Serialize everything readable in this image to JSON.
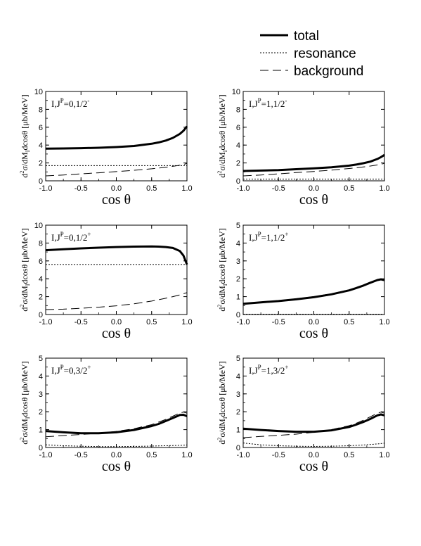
{
  "legend": {
    "entries": [
      {
        "name": "total",
        "style": "solid-thick"
      },
      {
        "name": "resonance",
        "style": "dotted"
      },
      {
        "name": "background",
        "style": "dashed"
      }
    ]
  },
  "chart_data": [
    {
      "type": "line",
      "panel_label": {
        "main": "I,J",
        "sup": "P",
        "rest": "=0,1/2",
        "sup2": "-"
      },
      "xlabel": "cos θ",
      "ylabel": "d²σ/dM_I dcosθ [μb/MeV]",
      "xlim": [
        -1,
        1
      ],
      "ylim": [
        0,
        10
      ],
      "xticks": [
        "-1.0",
        "-0.5",
        "0.0",
        "0.5",
        "1.0"
      ],
      "yticks": [
        "0",
        "2",
        "4",
        "6",
        "8",
        "10"
      ],
      "x": [
        -1.0,
        -0.75,
        -0.5,
        -0.25,
        0.0,
        0.25,
        0.5,
        0.6,
        0.7,
        0.8,
        0.9,
        0.95,
        1.0
      ],
      "series": [
        {
          "name": "total",
          "values": [
            3.6,
            3.62,
            3.65,
            3.7,
            3.78,
            3.9,
            4.15,
            4.3,
            4.5,
            4.8,
            5.25,
            5.6,
            6.1
          ]
        },
        {
          "name": "resonance",
          "values": [
            1.7,
            1.7,
            1.7,
            1.7,
            1.7,
            1.7,
            1.7,
            1.7,
            1.7,
            1.7,
            1.7,
            1.7,
            1.7
          ]
        },
        {
          "name": "background",
          "values": [
            0.55,
            0.65,
            0.78,
            0.9,
            1.03,
            1.18,
            1.35,
            1.43,
            1.52,
            1.62,
            1.75,
            1.82,
            1.95
          ]
        }
      ]
    },
    {
      "type": "line",
      "panel_label": {
        "main": "I,J",
        "sup": "P",
        "rest": "=1,1/2",
        "sup2": "-"
      },
      "xlabel": "cos θ",
      "ylabel": "d²σ/dM_I dcosθ [μb/MeV]",
      "xlim": [
        -1,
        1
      ],
      "ylim": [
        0,
        10
      ],
      "xticks": [
        "-1.0",
        "-0.5",
        "0.0",
        "0.5",
        "1.0"
      ],
      "yticks": [
        "0",
        "2",
        "4",
        "6",
        "8",
        "10"
      ],
      "x": [
        -1.0,
        -0.75,
        -0.5,
        -0.25,
        0.0,
        0.25,
        0.5,
        0.6,
        0.7,
        0.8,
        0.9,
        0.95,
        1.0
      ],
      "series": [
        {
          "name": "total",
          "values": [
            1.1,
            1.15,
            1.2,
            1.3,
            1.4,
            1.52,
            1.7,
            1.82,
            1.97,
            2.15,
            2.45,
            2.65,
            2.9
          ]
        },
        {
          "name": "resonance",
          "values": [
            0.2,
            0.2,
            0.2,
            0.2,
            0.2,
            0.2,
            0.2,
            0.2,
            0.2,
            0.2,
            0.2,
            0.2,
            0.2
          ]
        },
        {
          "name": "background",
          "values": [
            0.55,
            0.65,
            0.78,
            0.92,
            1.05,
            1.2,
            1.38,
            1.46,
            1.55,
            1.65,
            1.78,
            1.85,
            1.95
          ]
        }
      ]
    },
    {
      "type": "line",
      "panel_label": {
        "main": "I,J",
        "sup": "P",
        "rest": "=0,1/2",
        "sup2": "+"
      },
      "xlabel": "cos θ",
      "ylabel": "d²σ/dM_I dcosθ [μb/MeV]",
      "xlim": [
        -1,
        1
      ],
      "ylim": [
        0,
        10
      ],
      "xticks": [
        "-1.0",
        "-0.5",
        "0.0",
        "0.5",
        "1.0"
      ],
      "yticks": [
        "0",
        "2",
        "4",
        "6",
        "8",
        "10"
      ],
      "x": [
        -1.0,
        -0.75,
        -0.5,
        -0.25,
        0.0,
        0.25,
        0.5,
        0.6,
        0.7,
        0.8,
        0.9,
        0.95,
        1.0
      ],
      "series": [
        {
          "name": "total",
          "values": [
            7.2,
            7.3,
            7.4,
            7.48,
            7.55,
            7.6,
            7.62,
            7.6,
            7.55,
            7.45,
            7.1,
            6.6,
            5.6
          ]
        },
        {
          "name": "resonance",
          "values": [
            5.6,
            5.6,
            5.6,
            5.6,
            5.6,
            5.6,
            5.6,
            5.6,
            5.6,
            5.6,
            5.6,
            5.6,
            5.6
          ]
        },
        {
          "name": "background",
          "values": [
            0.55,
            0.6,
            0.7,
            0.82,
            0.98,
            1.2,
            1.5,
            1.65,
            1.82,
            2.0,
            2.2,
            2.32,
            2.45
          ]
        }
      ]
    },
    {
      "type": "line",
      "panel_label": {
        "main": "I,J",
        "sup": "P",
        "rest": "=1,1/2",
        "sup2": "+"
      },
      "xlabel": "cos θ",
      "ylabel": "d²σ/dM_I dcosθ [μb/MeV]",
      "xlim": [
        -1,
        1
      ],
      "ylim": [
        0,
        5
      ],
      "xticks": [
        "-1.0",
        "-0.5",
        "0.0",
        "0.5",
        "1.0"
      ],
      "yticks": [
        "0",
        "1",
        "2",
        "3",
        "4",
        "5"
      ],
      "x": [
        -1.0,
        -0.75,
        -0.5,
        -0.25,
        0.0,
        0.25,
        0.5,
        0.6,
        0.7,
        0.8,
        0.9,
        0.95,
        1.0
      ],
      "series": [
        {
          "name": "total",
          "values": [
            0.6,
            0.68,
            0.75,
            0.85,
            0.97,
            1.13,
            1.35,
            1.48,
            1.62,
            1.78,
            1.93,
            1.97,
            1.92
          ]
        },
        {
          "name": "resonance",
          "values": [
            0.02,
            0.02,
            0.02,
            0.02,
            0.02,
            0.02,
            0.02,
            0.02,
            0.02,
            0.02,
            0.02,
            0.02,
            0.02
          ]
        },
        {
          "name": "background",
          "values": [
            0.62,
            0.7,
            0.78,
            0.88,
            1.0,
            1.16,
            1.38,
            1.5,
            1.64,
            1.8,
            1.95,
            1.99,
            1.95
          ]
        }
      ]
    },
    {
      "type": "line",
      "panel_label": {
        "main": "I,J",
        "sup": "P",
        "rest": "=0,3/2",
        "sup2": "+"
      },
      "xlabel": "cos θ",
      "ylabel": "d²σ/dM_I dcosθ [μb/MeV]",
      "xlim": [
        -1,
        1
      ],
      "ylim": [
        0,
        5
      ],
      "xticks": [
        "-1.0",
        "-0.5",
        "0.0",
        "0.5",
        "1.0"
      ],
      "yticks": [
        "0",
        "1",
        "2",
        "3",
        "4",
        "5"
      ],
      "x": [
        -1.0,
        -0.75,
        -0.5,
        -0.25,
        0.0,
        0.25,
        0.5,
        0.6,
        0.7,
        0.8,
        0.9,
        0.95,
        1.0
      ],
      "series": [
        {
          "name": "total",
          "values": [
            0.92,
            0.85,
            0.8,
            0.8,
            0.85,
            0.98,
            1.2,
            1.32,
            1.48,
            1.65,
            1.82,
            1.83,
            1.75
          ]
        },
        {
          "name": "resonance",
          "values": [
            0.15,
            0.1,
            0.07,
            0.05,
            0.05,
            0.06,
            0.08,
            0.09,
            0.1,
            0.11,
            0.12,
            0.13,
            0.14
          ]
        },
        {
          "name": "background",
          "values": [
            0.6,
            0.67,
            0.73,
            0.8,
            0.9,
            1.05,
            1.28,
            1.42,
            1.57,
            1.75,
            1.93,
            1.98,
            1.92
          ]
        }
      ]
    },
    {
      "type": "line",
      "panel_label": {
        "main": "I,J",
        "sup": "P",
        "rest": "=1,3/2",
        "sup2": "+"
      },
      "xlabel": "cos θ",
      "ylabel": "d²σ/dM_I dcosθ [μb/MeV]",
      "xlim": [
        -1,
        1
      ],
      "ylim": [
        0,
        5
      ],
      "xticks": [
        "-1.0",
        "-0.5",
        "0.0",
        "0.5",
        "1.0"
      ],
      "yticks": [
        "0",
        "1",
        "2",
        "3",
        "4",
        "5"
      ],
      "x": [
        -1.0,
        -0.75,
        -0.5,
        -0.25,
        0.0,
        0.25,
        0.5,
        0.6,
        0.7,
        0.8,
        0.9,
        0.95,
        1.0
      ],
      "series": [
        {
          "name": "total",
          "values": [
            1.05,
            0.98,
            0.92,
            0.88,
            0.88,
            0.96,
            1.15,
            1.28,
            1.43,
            1.6,
            1.8,
            1.85,
            1.8
          ]
        },
        {
          "name": "resonance",
          "values": [
            0.25,
            0.15,
            0.1,
            0.07,
            0.06,
            0.07,
            0.1,
            0.12,
            0.14,
            0.17,
            0.2,
            0.22,
            0.24
          ]
        },
        {
          "name": "background",
          "values": [
            0.55,
            0.62,
            0.68,
            0.75,
            0.85,
            1.0,
            1.22,
            1.36,
            1.52,
            1.72,
            1.92,
            1.98,
            1.92
          ]
        }
      ]
    }
  ]
}
